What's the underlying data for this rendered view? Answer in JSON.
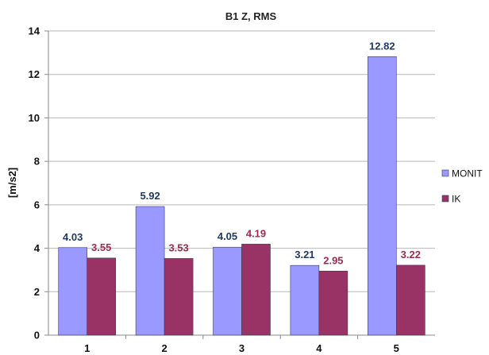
{
  "chart_data": {
    "type": "bar",
    "title": "B1 Z, RMS",
    "xlabel": "",
    "ylabel": "[m/s2]",
    "categories": [
      "1",
      "2",
      "3",
      "4",
      "5"
    ],
    "series": [
      {
        "name": "MONIT",
        "values": [
          4.03,
          5.92,
          4.05,
          3.21,
          12.82
        ],
        "labels": [
          "4.03",
          "5.92",
          "4.05",
          "3.21",
          "12.82"
        ],
        "color": "#9999ff",
        "label_color": "#1f3864"
      },
      {
        "name": "IK",
        "values": [
          3.55,
          3.53,
          4.19,
          2.95,
          3.22
        ],
        "labels": [
          "3.55",
          "3.53",
          "4.19",
          "2.95",
          "3.22"
        ],
        "color": "#993366",
        "label_color": "#9b2c4f"
      }
    ],
    "ylim": [
      0,
      14
    ],
    "yticks": [
      "0",
      "2",
      "4",
      "6",
      "8",
      "10",
      "12",
      "14"
    ],
    "grid": true,
    "legend_position": "right"
  }
}
